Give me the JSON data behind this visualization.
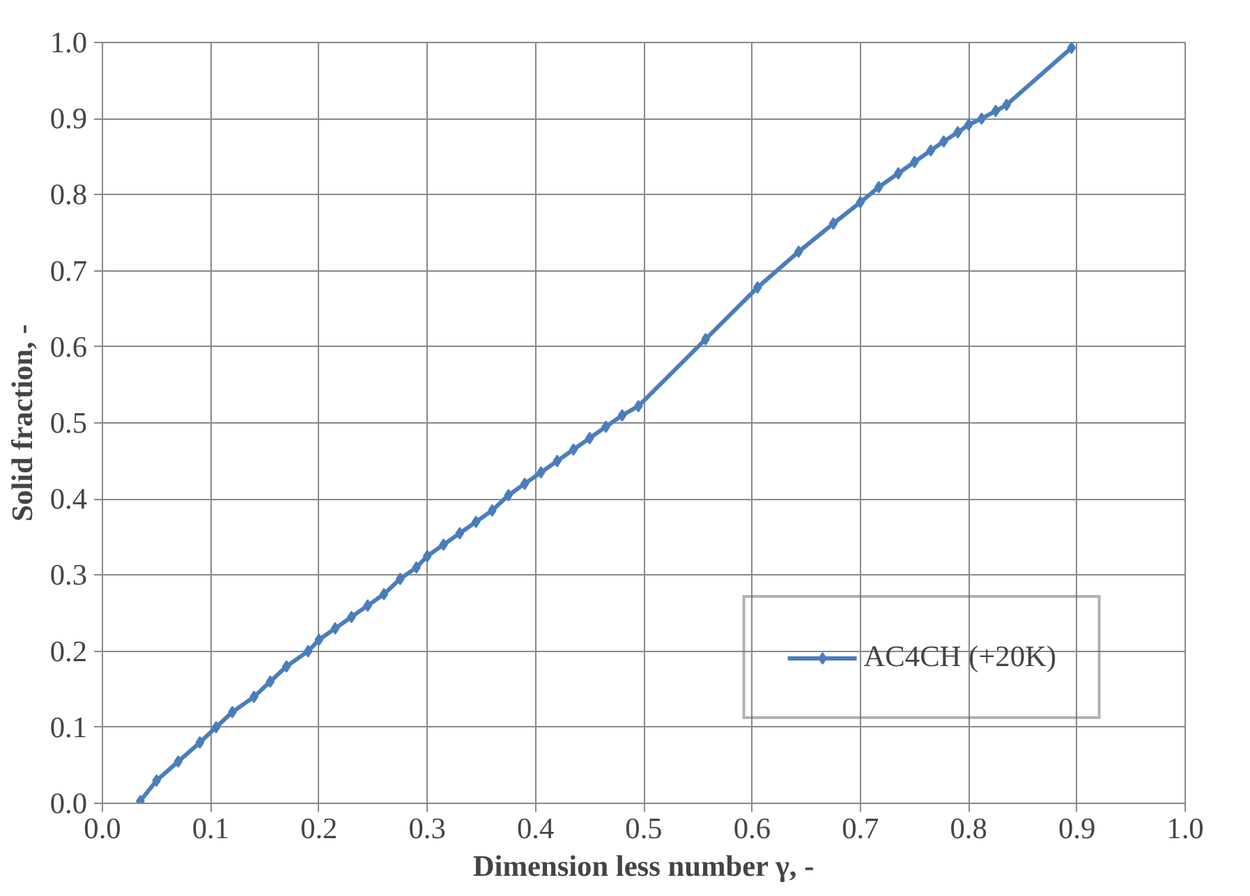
{
  "chart_data": {
    "type": "line",
    "xlabel": "Dimension less number γ, -",
    "ylabel": "Solid fraction, -",
    "x": [
      0.035,
      0.05,
      0.07,
      0.09,
      0.105,
      0.12,
      0.14,
      0.155,
      0.17,
      0.19,
      0.2,
      0.215,
      0.23,
      0.245,
      0.26,
      0.275,
      0.29,
      0.3,
      0.315,
      0.33,
      0.345,
      0.36,
      0.375,
      0.39,
      0.405,
      0.42,
      0.435,
      0.45,
      0.465,
      0.48,
      0.495,
      0.557,
      0.605,
      0.643,
      0.675,
      0.7,
      0.717,
      0.735,
      0.75,
      0.765,
      0.777,
      0.79,
      0.8,
      0.812,
      0.825,
      0.835,
      0.895
    ],
    "series": [
      {
        "name": "AC4CH (+20K)",
        "color": "#4a7ebb",
        "values": [
          0.003,
          0.03,
          0.055,
          0.08,
          0.1,
          0.12,
          0.14,
          0.16,
          0.18,
          0.2,
          0.215,
          0.23,
          0.245,
          0.26,
          0.275,
          0.295,
          0.31,
          0.325,
          0.34,
          0.355,
          0.37,
          0.385,
          0.405,
          0.42,
          0.435,
          0.45,
          0.465,
          0.48,
          0.495,
          0.51,
          0.522,
          0.61,
          0.678,
          0.725,
          0.762,
          0.79,
          0.81,
          0.828,
          0.843,
          0.858,
          0.87,
          0.882,
          0.892,
          0.9,
          0.91,
          0.918,
          0.993
        ]
      }
    ],
    "xlim": [
      0,
      1
    ],
    "ylim": [
      0,
      1
    ],
    "xticks": [
      {
        "value": 0,
        "label": "0.0"
      },
      {
        "value": 0.1,
        "label": "0.1"
      },
      {
        "value": 0.2,
        "label": "0.2"
      },
      {
        "value": 0.3,
        "label": "0.3"
      },
      {
        "value": 0.4,
        "label": "0.4"
      },
      {
        "value": 0.5,
        "label": "0.5"
      },
      {
        "value": 0.6,
        "label": "0.6"
      },
      {
        "value": 0.7,
        "label": "0.7"
      },
      {
        "value": 0.8,
        "label": "0.8"
      },
      {
        "value": 0.9,
        "label": "0.9"
      },
      {
        "value": 1,
        "label": "1.0"
      }
    ],
    "yticks": [
      {
        "value": 0,
        "label": "0.0"
      },
      {
        "value": 0.1,
        "label": "0.1"
      },
      {
        "value": 0.2,
        "label": "0.2"
      },
      {
        "value": 0.3,
        "label": "0.3"
      },
      {
        "value": 0.4,
        "label": "0.4"
      },
      {
        "value": 0.5,
        "label": "0.5"
      },
      {
        "value": 0.6,
        "label": "0.6"
      },
      {
        "value": 0.7,
        "label": "0.7"
      },
      {
        "value": 0.8,
        "label": "0.8"
      },
      {
        "value": 0.9,
        "label": "0.9"
      },
      {
        "value": 1,
        "label": "1.0"
      }
    ],
    "grid": true,
    "legend": "bottom right",
    "marker": "diamond",
    "line_style": "solid"
  }
}
